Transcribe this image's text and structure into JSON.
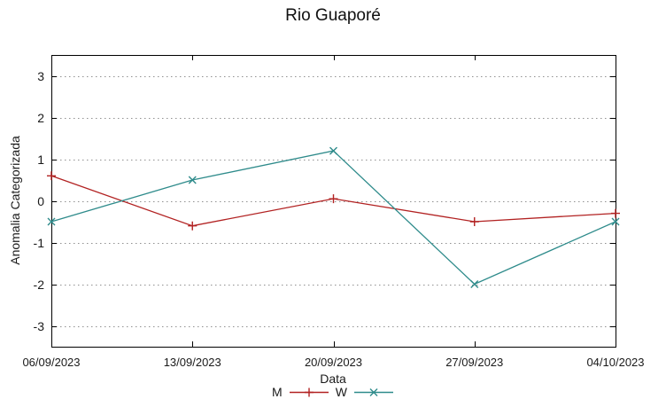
{
  "chart_data": {
    "type": "line",
    "title": "Rio Guaporé",
    "xlabel": "Data",
    "ylabel": "Anomalia Categorizada",
    "categories": [
      "06/09/2023",
      "13/09/2023",
      "20/09/2023",
      "27/09/2023",
      "04/10/2023"
    ],
    "series": [
      {
        "name": "M",
        "color": "#b22222",
        "marker": "plus",
        "values": [
          0.6,
          -0.6,
          0.05,
          -0.5,
          -0.3
        ]
      },
      {
        "name": "W",
        "color": "#2e8b8b",
        "marker": "cross",
        "values": [
          -0.5,
          0.5,
          1.2,
          -2.0,
          -0.5
        ]
      }
    ],
    "yticks": [
      3,
      2,
      1,
      0,
      -1,
      -2,
      -3
    ],
    "ylim": [
      -3.5,
      3.5
    ],
    "grid": "horizontal-dotted",
    "grid_color": "#909090",
    "axis_color": "#000000",
    "legend_position": "bottom-center"
  }
}
